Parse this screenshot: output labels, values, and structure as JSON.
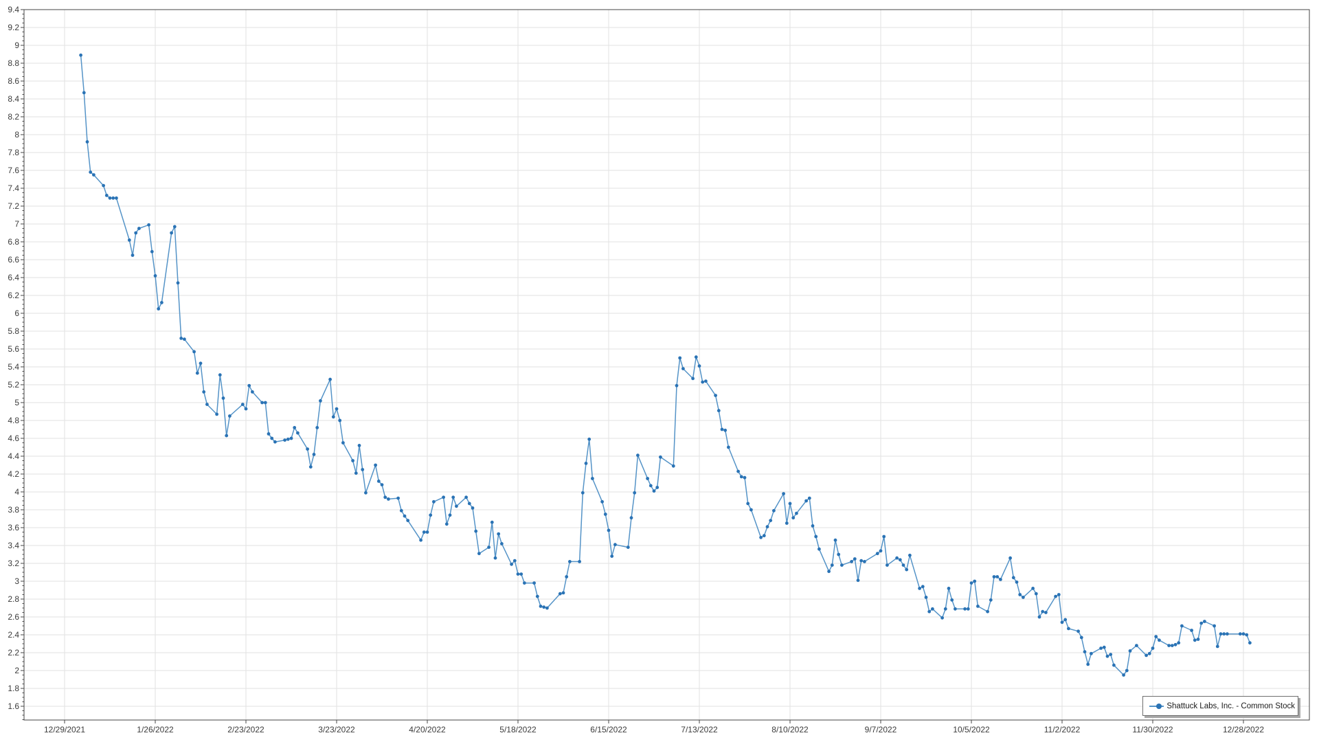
{
  "legend": {
    "label": "Shattuck Labs, Inc. - Common Stock"
  },
  "chart_data": {
    "type": "line",
    "title": "",
    "xlabel": "",
    "ylabel": "",
    "grid": true,
    "legend_position": "bottom-right",
    "ylim": [
      1.45,
      9.4
    ],
    "y_tick_min": 1.6,
    "y_tick_max": 9.4,
    "y_tick_step": 0.2,
    "x_tick_labels": [
      "12/29/2021",
      "1/26/2022",
      "2/23/2022",
      "3/23/2022",
      "4/20/2022",
      "5/18/2022",
      "6/15/2022",
      "7/13/2022",
      "8/10/2022",
      "9/7/2022",
      "10/5/2022",
      "11/2/2022",
      "11/30/2022",
      "12/28/2022"
    ],
    "colors": {
      "line": "#5493C7",
      "marker": "#2A73B5",
      "grid": "#E2E2E2",
      "axis": "#454545",
      "tick_label": "#3B3B3B",
      "legend_border": "#6E6E6E",
      "legend_shadow": "#A8A8A8",
      "background": "#FFFFFF"
    },
    "series": [
      {
        "name": "Shattuck Labs, Inc. - Common Stock",
        "dates": [
          "1/3/2022",
          "1/4/2022",
          "1/5/2022",
          "1/6/2022",
          "1/7/2022",
          "1/10/2022",
          "1/11/2022",
          "1/12/2022",
          "1/13/2022",
          "1/14/2022",
          "1/18/2022",
          "1/19/2022",
          "1/20/2022",
          "1/21/2022",
          "1/24/2022",
          "1/25/2022",
          "1/26/2022",
          "1/27/2022",
          "1/28/2022",
          "1/31/2022",
          "2/1/2022",
          "2/2/2022",
          "2/3/2022",
          "2/4/2022",
          "2/7/2022",
          "2/8/2022",
          "2/9/2022",
          "2/10/2022",
          "2/11/2022",
          "2/14/2022",
          "2/15/2022",
          "2/16/2022",
          "2/17/2022",
          "2/18/2022",
          "2/22/2022",
          "2/23/2022",
          "2/24/2022",
          "2/25/2022",
          "2/28/2022",
          "3/1/2022",
          "3/2/2022",
          "3/3/2022",
          "3/4/2022",
          "3/7/2022",
          "3/8/2022",
          "3/9/2022",
          "3/10/2022",
          "3/11/2022",
          "3/14/2022",
          "3/15/2022",
          "3/16/2022",
          "3/17/2022",
          "3/18/2022",
          "3/21/2022",
          "3/22/2022",
          "3/23/2022",
          "3/24/2022",
          "3/25/2022",
          "3/28/2022",
          "3/29/2022",
          "3/30/2022",
          "3/31/2022",
          "4/1/2022",
          "4/4/2022",
          "4/5/2022",
          "4/6/2022",
          "4/7/2022",
          "4/8/2022",
          "4/11/2022",
          "4/12/2022",
          "4/13/2022",
          "4/14/2022",
          "4/18/2022",
          "4/19/2022",
          "4/20/2022",
          "4/21/2022",
          "4/22/2022",
          "4/25/2022",
          "4/26/2022",
          "4/27/2022",
          "4/28/2022",
          "4/29/2022",
          "5/2/2022",
          "5/3/2022",
          "5/4/2022",
          "5/5/2022",
          "5/6/2022",
          "5/9/2022",
          "5/10/2022",
          "5/11/2022",
          "5/12/2022",
          "5/13/2022",
          "5/16/2022",
          "5/17/2022",
          "5/18/2022",
          "5/19/2022",
          "5/20/2022",
          "5/23/2022",
          "5/24/2022",
          "5/25/2022",
          "5/26/2022",
          "5/27/2022",
          "5/31/2022",
          "6/1/2022",
          "6/2/2022",
          "6/3/2022",
          "6/6/2022",
          "6/7/2022",
          "6/8/2022",
          "6/9/2022",
          "6/10/2022",
          "6/13/2022",
          "6/14/2022",
          "6/15/2022",
          "6/16/2022",
          "6/17/2022",
          "6/21/2022",
          "6/22/2022",
          "6/23/2022",
          "6/24/2022",
          "6/27/2022",
          "6/28/2022",
          "6/29/2022",
          "6/30/2022",
          "7/1/2022",
          "7/5/2022",
          "7/6/2022",
          "7/7/2022",
          "7/8/2022",
          "7/11/2022",
          "7/12/2022",
          "7/13/2022",
          "7/14/2022",
          "7/15/2022",
          "7/18/2022",
          "7/19/2022",
          "7/20/2022",
          "7/21/2022",
          "7/22/2022",
          "7/25/2022",
          "7/26/2022",
          "7/27/2022",
          "7/28/2022",
          "7/29/2022",
          "8/1/2022",
          "8/2/2022",
          "8/3/2022",
          "8/4/2022",
          "8/5/2022",
          "8/8/2022",
          "8/9/2022",
          "8/10/2022",
          "8/11/2022",
          "8/12/2022",
          "8/15/2022",
          "8/16/2022",
          "8/17/2022",
          "8/18/2022",
          "8/19/2022",
          "8/22/2022",
          "8/23/2022",
          "8/24/2022",
          "8/25/2022",
          "8/26/2022",
          "8/29/2022",
          "8/30/2022",
          "8/31/2022",
          "9/1/2022",
          "9/2/2022",
          "9/6/2022",
          "9/7/2022",
          "9/8/2022",
          "9/9/2022",
          "9/12/2022",
          "9/13/2022",
          "9/14/2022",
          "9/15/2022",
          "9/16/2022",
          "9/19/2022",
          "9/20/2022",
          "9/21/2022",
          "9/22/2022",
          "9/23/2022",
          "9/26/2022",
          "9/27/2022",
          "9/28/2022",
          "9/29/2022",
          "9/30/2022",
          "10/3/2022",
          "10/4/2022",
          "10/5/2022",
          "10/6/2022",
          "10/7/2022",
          "10/10/2022",
          "10/11/2022",
          "10/12/2022",
          "10/13/2022",
          "10/14/2022",
          "10/17/2022",
          "10/18/2022",
          "10/19/2022",
          "10/20/2022",
          "10/21/2022",
          "10/24/2022",
          "10/25/2022",
          "10/26/2022",
          "10/27/2022",
          "10/28/2022",
          "10/31/2022",
          "11/1/2022",
          "11/2/2022",
          "11/3/2022",
          "11/4/2022",
          "11/7/2022",
          "11/8/2022",
          "11/9/2022",
          "11/10/2022",
          "11/11/2022",
          "11/14/2022",
          "11/15/2022",
          "11/16/2022",
          "11/17/2022",
          "11/18/2022",
          "11/21/2022",
          "11/22/2022",
          "11/23/2022",
          "11/25/2022",
          "11/28/2022",
          "11/29/2022",
          "11/30/2022",
          "12/1/2022",
          "12/2/2022",
          "12/5/2022",
          "12/6/2022",
          "12/7/2022",
          "12/8/2022",
          "12/9/2022",
          "12/12/2022",
          "12/13/2022",
          "12/14/2022",
          "12/15/2022",
          "12/16/2022",
          "12/19/2022",
          "12/20/2022",
          "12/21/2022",
          "12/22/2022",
          "12/23/2022",
          "12/27/2022",
          "12/28/2022",
          "12/29/2022",
          "12/30/2022"
        ],
        "values": [
          8.89,
          8.47,
          7.92,
          7.58,
          7.55,
          7.43,
          7.32,
          7.29,
          7.29,
          7.29,
          6.82,
          6.65,
          6.9,
          6.95,
          6.99,
          6.69,
          6.42,
          6.05,
          6.12,
          6.9,
          6.97,
          6.34,
          5.72,
          5.71,
          5.57,
          5.33,
          5.44,
          5.12,
          4.98,
          4.87,
          5.31,
          5.05,
          4.63,
          4.85,
          4.98,
          4.93,
          5.19,
          5.12,
          5.0,
          5.0,
          4.65,
          4.6,
          4.56,
          4.58,
          4.59,
          4.6,
          4.72,
          4.66,
          4.48,
          4.28,
          4.42,
          4.72,
          5.02,
          5.26,
          4.84,
          4.93,
          4.8,
          4.55,
          4.35,
          4.21,
          4.52,
          4.25,
          3.99,
          4.3,
          4.12,
          4.08,
          3.94,
          3.92,
          3.93,
          3.79,
          3.73,
          3.68,
          3.46,
          3.55,
          3.55,
          3.74,
          3.89,
          3.94,
          3.64,
          3.74,
          3.94,
          3.84,
          3.94,
          3.87,
          3.82,
          3.56,
          3.31,
          3.38,
          3.66,
          3.26,
          3.53,
          3.42,
          3.19,
          3.23,
          3.08,
          3.08,
          2.98,
          2.98,
          2.83,
          2.72,
          2.71,
          2.7,
          2.86,
          2.87,
          3.05,
          3.22,
          3.22,
          3.99,
          4.32,
          4.59,
          4.15,
          3.89,
          3.75,
          3.57,
          3.28,
          3.41,
          3.38,
          3.71,
          3.99,
          4.41,
          4.15,
          4.07,
          4.01,
          4.05,
          4.39,
          4.29,
          5.19,
          5.5,
          5.38,
          5.27,
          5.51,
          5.41,
          5.23,
          5.24,
          5.08,
          4.91,
          4.7,
          4.69,
          4.5,
          4.23,
          4.17,
          4.16,
          3.87,
          3.8,
          3.49,
          3.51,
          3.61,
          3.68,
          3.79,
          3.98,
          3.65,
          3.87,
          3.71,
          3.76,
          3.9,
          3.93,
          3.62,
          3.5,
          3.36,
          3.11,
          3.18,
          3.46,
          3.3,
          3.18,
          3.22,
          3.25,
          3.01,
          3.23,
          3.22,
          3.31,
          3.34,
          3.5,
          3.18,
          3.26,
          3.24,
          3.18,
          3.13,
          3.29,
          2.92,
          2.94,
          2.82,
          2.66,
          2.69,
          2.59,
          2.69,
          2.92,
          2.79,
          2.69,
          2.69,
          2.69,
          2.98,
          3.0,
          2.72,
          2.66,
          2.79,
          3.05,
          3.05,
          3.02,
          3.26,
          3.04,
          2.99,
          2.85,
          2.82,
          2.92,
          2.86,
          2.6,
          2.66,
          2.65,
          2.83,
          2.85,
          2.54,
          2.57,
          2.47,
          2.44,
          2.37,
          2.21,
          2.07,
          2.19,
          2.25,
          2.26,
          2.16,
          2.18,
          2.06,
          1.95,
          2.0,
          2.22,
          2.28,
          2.17,
          2.19,
          2.25,
          2.38,
          2.34,
          2.28,
          2.28,
          2.29,
          2.31,
          2.5,
          2.45,
          2.34,
          2.35,
          2.53,
          2.55,
          2.5,
          2.27,
          2.41,
          2.41,
          2.41,
          2.41,
          2.41,
          2.4,
          2.31
        ]
      }
    ]
  }
}
